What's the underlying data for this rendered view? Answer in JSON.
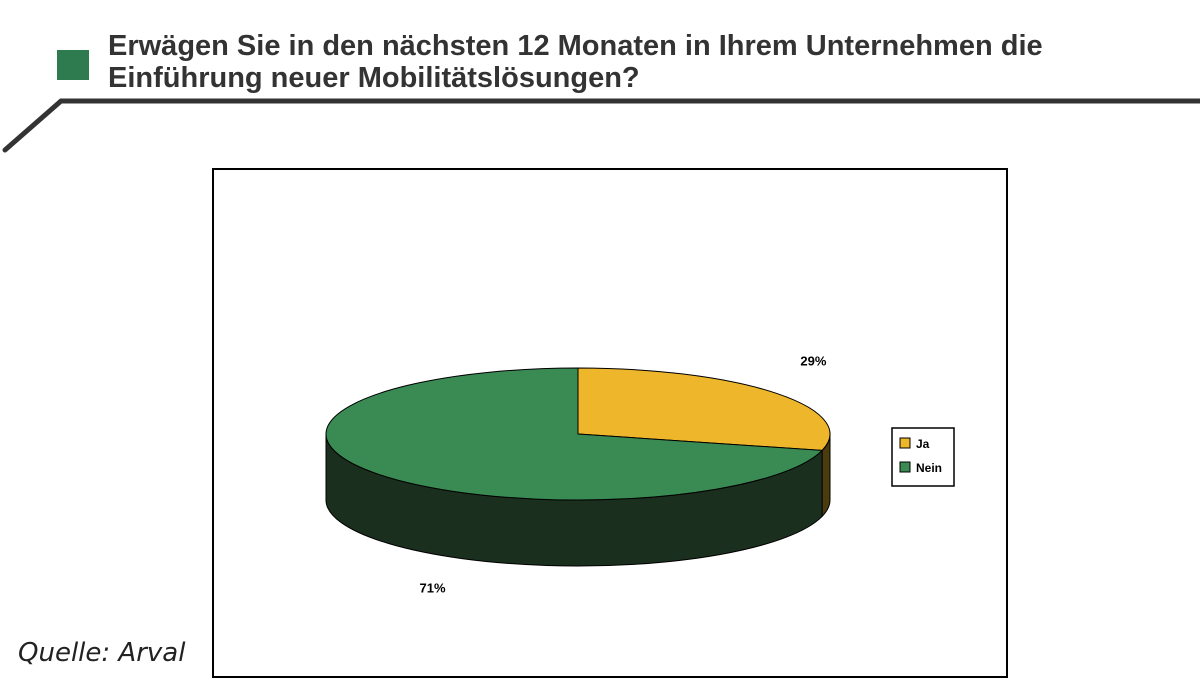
{
  "header": {
    "title": "Erwägen Sie in den nächsten 12 Monaten in Ihrem Unternehmen die Einführung neuer Mobilitätslösungen?",
    "accent_color": "#2e7b4f",
    "rule_color": "#333333"
  },
  "source": "Quelle: Arval",
  "chart_data": {
    "type": "pie",
    "style": "3d",
    "title": "",
    "categories": [
      "Ja",
      "Nein"
    ],
    "values": [
      29,
      71
    ],
    "labels": [
      "29%",
      "71%"
    ],
    "colors": [
      "#eeb62a",
      "#3a8a54"
    ],
    "side_colors": [
      "#4a3c0e",
      "#1b2f1e"
    ],
    "legend": {
      "position": "right",
      "entries": [
        "Ja",
        "Nein"
      ]
    }
  }
}
